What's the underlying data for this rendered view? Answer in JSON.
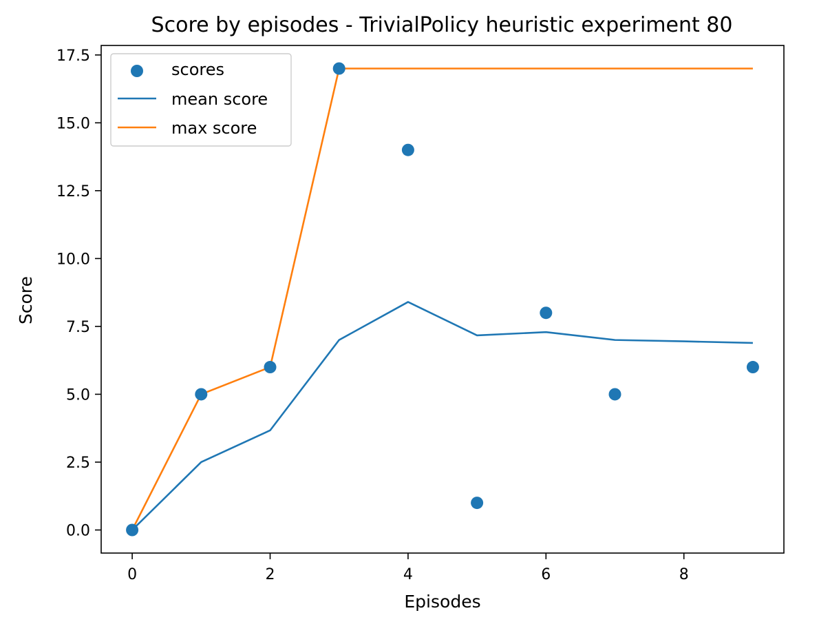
{
  "chart_data": {
    "type": "line",
    "title": "Score by episodes - TrivialPolicy heuristic experiment 80",
    "xlabel": "Episodes",
    "ylabel": "Score",
    "xlim": [
      -0.45,
      9.45
    ],
    "ylim": [
      -0.85,
      17.85
    ],
    "xticks": [
      0,
      2,
      4,
      6,
      8
    ],
    "xtick_labels": [
      "0",
      "2",
      "4",
      "6",
      "8"
    ],
    "yticks": [
      0,
      2.5,
      5,
      7.5,
      10,
      12.5,
      15,
      17.5
    ],
    "ytick_labels": [
      "0.0",
      "2.5",
      "5.0",
      "7.5",
      "10.0",
      "12.5",
      "15.0",
      "17.5"
    ],
    "grid": false,
    "legend_position": "top-left",
    "x": [
      0,
      1,
      2,
      3,
      4,
      5,
      6,
      7,
      8,
      9
    ],
    "series": [
      {
        "name": "scores",
        "kind": "scatter",
        "color": "#1f77b4",
        "x": [
          0,
          1,
          2,
          3,
          4,
          5,
          6,
          7,
          9
        ],
        "values": [
          0,
          5,
          6,
          17,
          14,
          1,
          8,
          5,
          6
        ]
      },
      {
        "name": "mean score",
        "kind": "line",
        "color": "#1f77b4",
        "x": [
          0,
          1,
          2,
          3,
          4,
          5,
          6,
          7,
          8,
          9
        ],
        "values": [
          0,
          2.5,
          3.67,
          7.0,
          8.4,
          7.17,
          7.29,
          7.0,
          6.95,
          6.89
        ]
      },
      {
        "name": "max score",
        "kind": "line",
        "color": "#ff7f0e",
        "x": [
          0,
          1,
          2,
          3,
          4,
          5,
          6,
          7,
          8,
          9
        ],
        "values": [
          0,
          5,
          6,
          17,
          17,
          17,
          17,
          17,
          17,
          17
        ]
      }
    ]
  }
}
